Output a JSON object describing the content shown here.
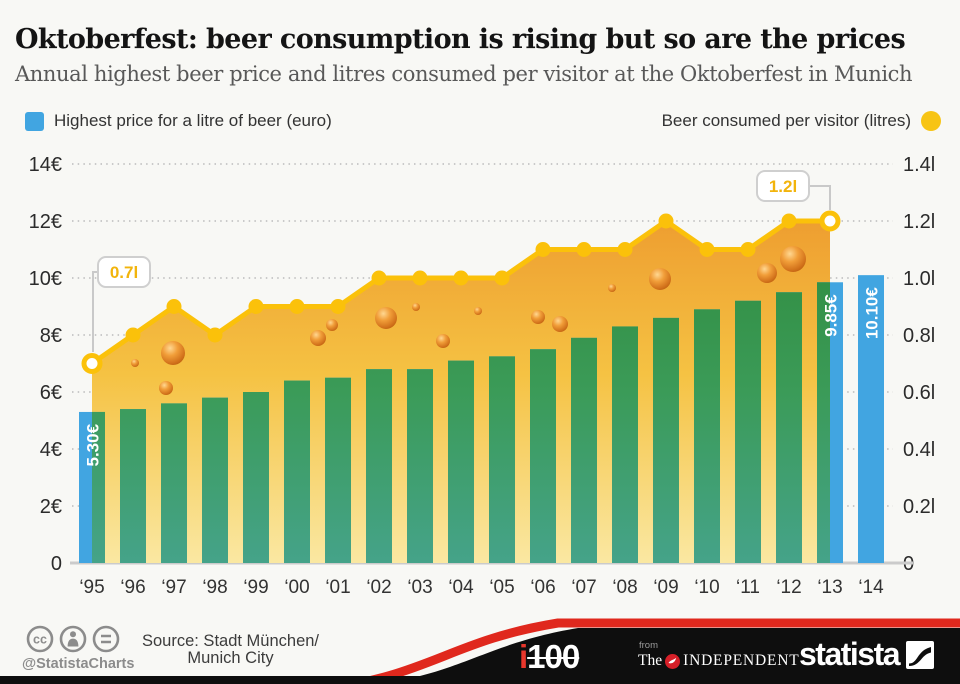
{
  "title": "Oktoberfest: beer consumption is rising but so are the prices",
  "subtitle": "Annual highest beer price and litres consumed per visitor at the Oktoberfest in Munich",
  "legend": {
    "price_label": "Highest price for a litre of beer (euro)",
    "litres_label": "Beer consumed per visitor (litres)"
  },
  "colors": {
    "bar_blue": "#41A5E1",
    "bar_green_top": "#2F8B3D",
    "bar_green_mid": "#3B9B58",
    "bar_green_bottom": "#45A389",
    "line_gold": "#FBC10A",
    "area_top": "#EE9E30",
    "area_mid": "#F5C243",
    "area_bottom": "#FAE8A2",
    "accent_red": "#E0281D",
    "footer_black": "#0E0E0E"
  },
  "chart_data": {
    "type": "combo bar + area-line, dual axis",
    "categories": [
      "‘95",
      "‘96",
      "‘97",
      "‘98",
      "‘99",
      "‘00",
      "‘01",
      "‘02",
      "‘03",
      "‘04",
      "‘05",
      "‘06",
      "‘07",
      "‘08",
      "‘09",
      "‘10",
      "‘11",
      "‘12",
      "‘13",
      "‘14"
    ],
    "series": [
      {
        "name": "Highest price for a litre of beer (euro)",
        "type": "bar",
        "axis": "left",
        "unit": "€",
        "values": [
          5.3,
          5.4,
          5.6,
          5.8,
          6.0,
          6.4,
          6.5,
          6.8,
          6.8,
          7.1,
          7.25,
          7.5,
          7.9,
          8.3,
          8.6,
          8.9,
          9.2,
          9.5,
          9.85,
          10.1
        ]
      },
      {
        "name": "Beer consumed per visitor (litres)",
        "type": "area-line",
        "axis": "right",
        "unit": "l",
        "values": [
          0.7,
          0.8,
          0.9,
          0.8,
          0.9,
          0.9,
          0.9,
          1.0,
          1.0,
          1.0,
          1.0,
          1.1,
          1.1,
          1.1,
          1.2,
          1.1,
          1.1,
          1.2,
          1.2,
          null
        ]
      }
    ],
    "left_axis": {
      "ticks": [
        "14€",
        "12€",
        "10€",
        "8€",
        "6€",
        "4€",
        "2€",
        "0"
      ],
      "min": 0,
      "max": 14
    },
    "right_axis": {
      "ticks": [
        "1.4l",
        "1.2l",
        "1.0l",
        "0.8l",
        "0.6l",
        "0.4l",
        "0.2l",
        "0"
      ],
      "min": 0,
      "max": 1.4
    },
    "bar_value_labels": {
      "0": "5.30€",
      "18": "9.85€",
      "19": "10.10€"
    },
    "callouts": [
      {
        "index": 0,
        "label": "0.7l"
      },
      {
        "index": 18,
        "label": "1.2l"
      }
    ],
    "grid": "dotted horizontal",
    "legend_position": "top"
  },
  "footer": {
    "handle": "@StatistaCharts",
    "source_line1": "Source: Stadt München/",
    "source_line2": "Munich City",
    "i100_i": "i",
    "i100_num": "100",
    "from_label": "from",
    "the_label": "The",
    "independent_label": "INDEPENDENT",
    "statista_label": "statista"
  }
}
